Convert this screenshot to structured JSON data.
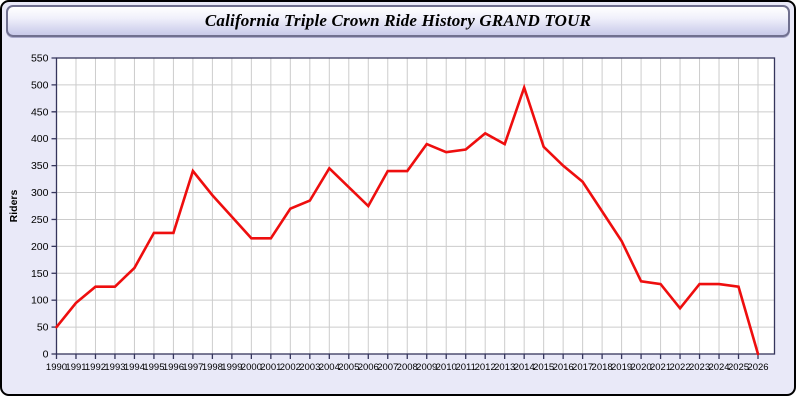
{
  "window": {
    "title": "California Triple Crown Ride History GRAND TOUR"
  },
  "chart_data": {
    "type": "line",
    "title": "California Triple Crown Ride History GRAND TOUR",
    "xlabel": "",
    "ylabel": "Riders",
    "x": [
      1990,
      1991,
      1992,
      1993,
      1994,
      1995,
      1996,
      1997,
      1998,
      1999,
      2000,
      2001,
      2002,
      2003,
      2004,
      2005,
      2006,
      2007,
      2008,
      2009,
      2010,
      2011,
      2012,
      2013,
      2014,
      2015,
      2016,
      2017,
      2018,
      2019,
      2020,
      2021,
      2022,
      2023,
      2024,
      2025,
      2026
    ],
    "series": [
      {
        "name": "Riders",
        "values": [
          50,
          95,
          125,
          125,
          160,
          225,
          225,
          340,
          295,
          255,
          215,
          215,
          270,
          285,
          345,
          310,
          275,
          340,
          340,
          390,
          375,
          380,
          410,
          390,
          495,
          385,
          350,
          320,
          265,
          210,
          135,
          130,
          85,
          130,
          130,
          125,
          0
        ]
      }
    ],
    "ylim": [
      0,
      550
    ],
    "ytick_step": 50,
    "grid": true,
    "legend": "none"
  },
  "colors": {
    "line": "#ee0e0e",
    "grid": "#cccccc",
    "plot_border": "#35355c",
    "plot_bg": "#ffffff",
    "tick_text": "#000000",
    "window_bg": "#e9e9f8",
    "outer_border": "#000000",
    "header_border": "#70708f",
    "header_gradient_top": "#ffffff",
    "header_gradient_bottom": "#c9cae9"
  }
}
